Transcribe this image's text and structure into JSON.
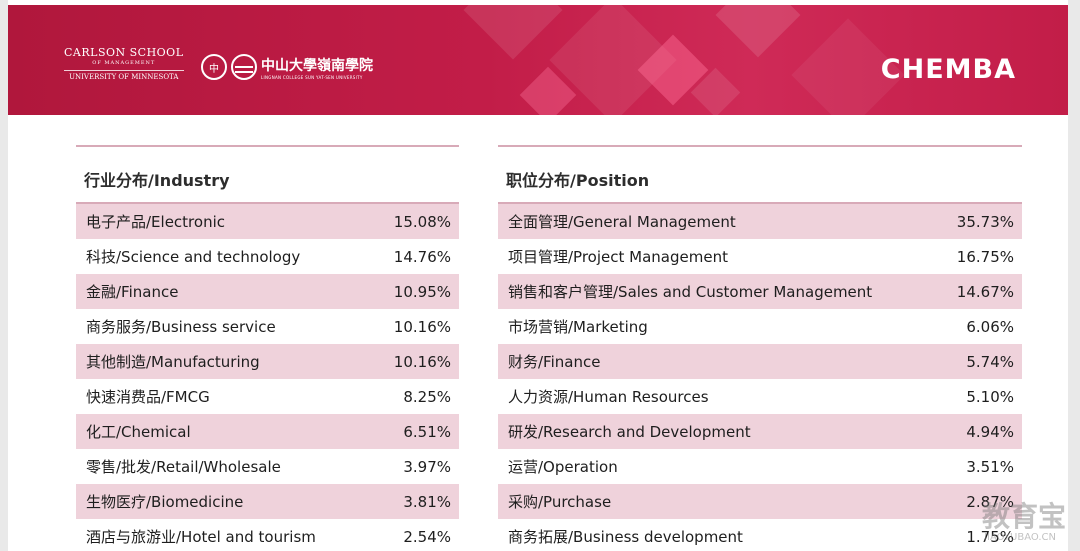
{
  "header": {
    "carlson": {
      "line1": "CARLSON SCHOOL",
      "line2": "OF MANAGEMENT",
      "line3": "UNIVERSITY OF MINNESOTA"
    },
    "lingnan": {
      "seal": "中",
      "name_cn": "中山大學嶺南學院",
      "name_en": "LINGNAN COLLEGE SUN YAT-SEN UNIVERSITY"
    },
    "brand": "CHEMBA",
    "colors": {
      "banner": "#b0173c",
      "row_highlight": "#efd2db",
      "rule": "#d8aab8"
    }
  },
  "industry": {
    "title": "行业分布/Industry",
    "rows": [
      {
        "label": "电子产品/Electronic",
        "pct": "15.08%"
      },
      {
        "label": "科技/Science and technology",
        "pct": "14.76%"
      },
      {
        "label": "金融/Finance",
        "pct": "10.95%"
      },
      {
        "label": "商务服务/Business service",
        "pct": "10.16%"
      },
      {
        "label": "其他制造/Manufacturing",
        "pct": "10.16%"
      },
      {
        "label": "快速消费品/FMCG",
        "pct": "8.25%"
      },
      {
        "label": "化工/Chemical",
        "pct": "6.51%"
      },
      {
        "label": "零售/批发/Retail/Wholesale",
        "pct": "3.97%"
      },
      {
        "label": "生物医疗/Biomedicine",
        "pct": "3.81%"
      },
      {
        "label": "酒店与旅游业/Hotel and tourism",
        "pct": "2.54%"
      }
    ]
  },
  "position": {
    "title": "职位分布/Position",
    "rows": [
      {
        "label": "全面管理/General Management",
        "pct": "35.73%"
      },
      {
        "label": "项目管理/Project Management",
        "pct": "16.75%"
      },
      {
        "label": "销售和客户管理/Sales and Customer Management",
        "pct": "14.67%"
      },
      {
        "label": "市场营销/Marketing",
        "pct": "6.06%"
      },
      {
        "label": "财务/Finance",
        "pct": "5.74%"
      },
      {
        "label": "人力资源/Human Resources",
        "pct": "5.10%"
      },
      {
        "label": "研发/Research and Development",
        "pct": "4.94%"
      },
      {
        "label": "运营/Operation",
        "pct": "3.51%"
      },
      {
        "label": "采购/Purchase",
        "pct": "2.87%"
      },
      {
        "label": "商务拓展/Business development",
        "pct": "1.75%"
      }
    ]
  },
  "watermark": {
    "main": "教育宝",
    "sub": "JIAOYUBAO.CN"
  }
}
